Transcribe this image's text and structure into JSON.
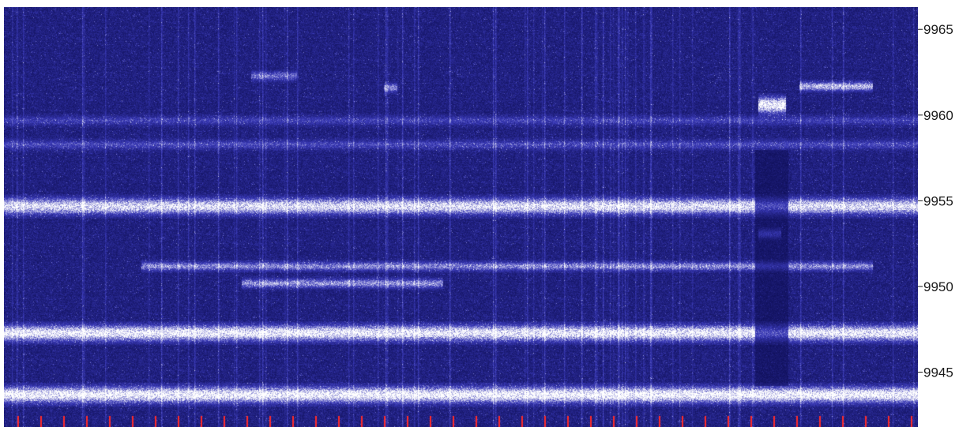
{
  "chart_data": {
    "type": "heatmap",
    "title": "",
    "xlabel": "",
    "ylabel": "",
    "y_axis_position": "right",
    "ylim": [
      9941.8,
      9966.3
    ],
    "y_ticks": [
      9965,
      9960,
      9955,
      9950,
      9945
    ],
    "y_tick_labels": [
      "9965",
      "9960",
      "9955",
      "9950",
      "9945"
    ],
    "colormap": {
      "low": "#0a0a4e",
      "mid": "#3a3ab8",
      "high": "#ffffff"
    },
    "marker_color": "#ff2a2a",
    "signal_traces": [
      {
        "freq": 9954.7,
        "intensity": 0.85,
        "x_start": 0.0,
        "x_end": 1.0
      },
      {
        "freq": 9947.3,
        "intensity": 0.9,
        "x_start": 0.0,
        "x_end": 1.0
      },
      {
        "freq": 9943.7,
        "intensity": 0.95,
        "x_start": 0.0,
        "x_end": 1.0
      },
      {
        "freq": 9951.2,
        "intensity": 0.55,
        "x_start": 0.15,
        "x_end": 0.95
      },
      {
        "freq": 9950.2,
        "intensity": 0.6,
        "x_start": 0.26,
        "x_end": 0.48
      },
      {
        "freq": 9958.3,
        "intensity": 0.35,
        "x_start": 0.0,
        "x_end": 1.0
      },
      {
        "freq": 9959.7,
        "intensity": 0.3,
        "x_start": 0.0,
        "x_end": 1.0
      },
      {
        "freq": 9961.7,
        "intensity": 0.7,
        "x_start": 0.87,
        "x_end": 0.95
      },
      {
        "freq": 9960.6,
        "intensity": 0.95,
        "x_start": 0.825,
        "x_end": 0.855
      },
      {
        "freq": 9953.1,
        "intensity": 0.55,
        "x_start": 0.825,
        "x_end": 0.85
      },
      {
        "freq": 9962.3,
        "intensity": 0.45,
        "x_start": 0.27,
        "x_end": 0.32
      },
      {
        "freq": 9961.6,
        "intensity": 0.55,
        "x_start": 0.415,
        "x_end": 0.43
      }
    ]
  }
}
